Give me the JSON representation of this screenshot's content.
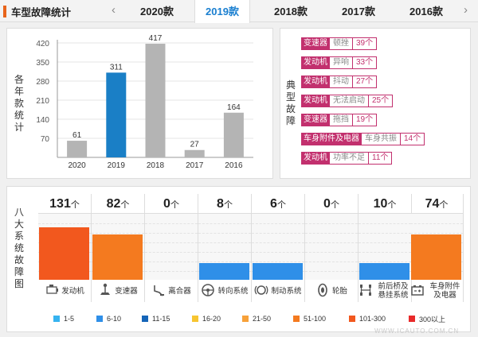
{
  "header": {
    "title": "车型故障统计",
    "prev_arrow": "‹",
    "next_arrow": "›"
  },
  "tabs": [
    {
      "label": "2020款",
      "active": false
    },
    {
      "label": "2019款",
      "active": true
    },
    {
      "label": "2018款",
      "active": false
    },
    {
      "label": "2017款",
      "active": false
    },
    {
      "label": "2016款",
      "active": false
    }
  ],
  "chart_data": [
    {
      "type": "bar",
      "title": "各年款统计",
      "categories": [
        "2020",
        "2019",
        "2018",
        "2017",
        "2016"
      ],
      "values": [
        61,
        311,
        417,
        27,
        164
      ],
      "highlight": "2019",
      "yticks": [
        70,
        140,
        210,
        280,
        350,
        420
      ],
      "ylim": [
        0,
        420
      ],
      "colors": {
        "default": "#b4b4b4",
        "highlight": "#1a7fc6"
      }
    },
    {
      "type": "table",
      "title": "八大系统故障图",
      "unit": "个",
      "systems": [
        {
          "name": "发动机",
          "count": 131,
          "level": 0.78,
          "color": "#f2581e",
          "icon": "engine-icon"
        },
        {
          "name": "变速器",
          "count": 82,
          "level": 0.68,
          "color": "#f47a1f",
          "icon": "gearshift-icon"
        },
        {
          "name": "离合器",
          "count": 0,
          "level": 0,
          "color": "#f47a1f",
          "icon": "clutch-icon"
        },
        {
          "name": "转向系统",
          "count": 8,
          "level": 0.25,
          "color": "#2f8fe8",
          "icon": "steering-wheel-icon"
        },
        {
          "name": "制动系统",
          "count": 6,
          "level": 0.25,
          "color": "#2f8fe8",
          "icon": "brake-icon"
        },
        {
          "name": "轮胎",
          "count": 0,
          "level": 0,
          "color": "#2f8fe8",
          "icon": "tire-icon"
        },
        {
          "name": "前后桥及悬挂系统",
          "count": 10,
          "level": 0.25,
          "color": "#2f8fe8",
          "icon": "suspension-icon"
        },
        {
          "name": "车身附件及电器",
          "count": 74,
          "level": 0.68,
          "color": "#f47a1f",
          "icon": "battery-icon"
        }
      ],
      "legend": [
        {
          "label": "1-5",
          "color": "#36b3f0"
        },
        {
          "label": "6-10",
          "color": "#2f8fe8"
        },
        {
          "label": "11-15",
          "color": "#1565b8"
        },
        {
          "label": "16-20",
          "color": "#f7c531"
        },
        {
          "label": "21-50",
          "color": "#f7a13a"
        },
        {
          "label": "51-100",
          "color": "#f47a1f"
        },
        {
          "label": "101-300",
          "color": "#f2581e"
        },
        {
          "label": "300以上",
          "color": "#e82a2a"
        }
      ]
    }
  ],
  "typical_faults": {
    "title": "典型故障",
    "items": [
      {
        "system": "变速器",
        "desc": "顿挫",
        "count": "39个"
      },
      {
        "system": "发动机",
        "desc": "异响",
        "count": "33个"
      },
      {
        "system": "发动机",
        "desc": "抖动",
        "count": "27个"
      },
      {
        "system": "发动机",
        "desc": "无法启动",
        "count": "25个"
      },
      {
        "system": "变速器",
        "desc": "拖挡",
        "count": "19个"
      },
      {
        "system": "车身附件及电器",
        "desc": "车身共振",
        "count": "14个"
      },
      {
        "system": "发动机",
        "desc": "功率不足",
        "count": "11个"
      }
    ]
  },
  "watermark": "WWW.ICAUTO.COM.CN"
}
